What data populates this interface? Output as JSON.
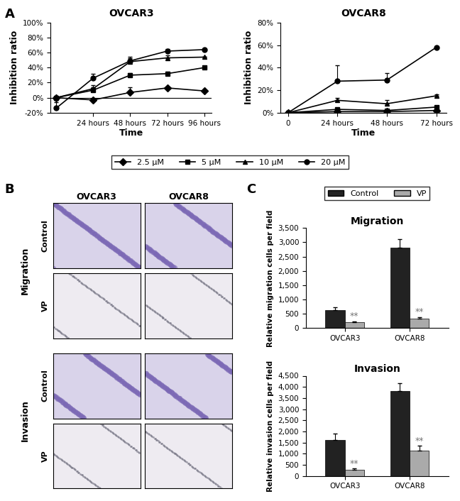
{
  "panel_labels": [
    "A",
    "B",
    "C"
  ],
  "chart_data": [
    {
      "type": "line",
      "title": "OVCAR3",
      "x_label": "Time",
      "y_label": "Inhibition ratio",
      "categories": [
        null,
        "24 hours",
        "48 hours",
        "72 hours",
        "96 hours"
      ],
      "ylim": [
        -20,
        100
      ],
      "yticks": [
        {
          "value": -20,
          "label": "-20%"
        },
        {
          "value": 0,
          "label": "0%"
        },
        {
          "value": 20,
          "label": "20%"
        },
        {
          "value": 40,
          "label": "40%"
        },
        {
          "value": 60,
          "label": "60%"
        },
        {
          "value": 80,
          "label": "80%"
        },
        {
          "value": 100,
          "label": "100%"
        }
      ],
      "legend": "lower center",
      "series": [
        {
          "name": "2.5 µM",
          "color": "#000000",
          "marker": "diamond",
          "values": [
            0,
            -3,
            7,
            13,
            9
          ],
          "errors": [
            0,
            2,
            7,
            2,
            1
          ]
        },
        {
          "name": "5 µM",
          "color": "#000000",
          "marker": "square",
          "values": [
            0,
            10,
            30,
            32,
            40
          ],
          "errors": [
            0,
            4,
            3,
            3,
            0
          ]
        },
        {
          "name": "10 µM",
          "color": "#000000",
          "marker": "triangle",
          "values": [
            0,
            12,
            48,
            53,
            54
          ],
          "errors": [
            0,
            5,
            6,
            3,
            0
          ]
        },
        {
          "name": "20 µM",
          "color": "#000000",
          "marker": "circle",
          "values": [
            -14,
            26,
            49,
            62,
            64
          ],
          "errors": [
            8,
            6,
            4,
            3,
            1
          ]
        }
      ]
    },
    {
      "type": "line",
      "title": "OVCAR8",
      "x_label": "Time",
      "y_label": "Inhibition ratio",
      "categories": [
        "0",
        "24 hours",
        "48 hours",
        "72 hours"
      ],
      "ylim": [
        0,
        80
      ],
      "yticks": [
        {
          "value": 0,
          "label": "0%"
        },
        {
          "value": 20,
          "label": "20%"
        },
        {
          "value": 40,
          "label": "40%"
        },
        {
          "value": 60,
          "label": "60%"
        },
        {
          "value": 80,
          "label": "80%"
        }
      ],
      "series": [
        {
          "name": "2.5 µM",
          "color": "#000000",
          "marker": "diamond",
          "values": [
            0,
            1,
            1,
            2
          ],
          "errors": [
            0,
            1,
            1,
            0
          ]
        },
        {
          "name": "5 µM",
          "color": "#000000",
          "marker": "square",
          "values": [
            0,
            3,
            2,
            5
          ],
          "errors": [
            0,
            1,
            1,
            0
          ]
        },
        {
          "name": "10 µM",
          "color": "#000000",
          "marker": "triangle",
          "values": [
            0,
            11,
            8,
            15
          ],
          "errors": [
            0,
            2,
            3,
            1
          ]
        },
        {
          "name": "20 µM",
          "color": "#000000",
          "marker": "circle",
          "values": [
            0,
            28,
            29,
            58
          ],
          "errors": [
            0,
            14,
            6,
            1
          ]
        }
      ]
    },
    {
      "type": "bar",
      "title": "Migration",
      "y_label": "Relative migration cells per field",
      "categories": [
        "OVCAR3",
        "OVCAR8"
      ],
      "ylim": [
        0,
        3500
      ],
      "yticks": [
        0,
        500,
        {
          "value": 1000,
          "label": "1,000"
        },
        {
          "value": 1500,
          "label": "1,500"
        },
        {
          "value": 2000,
          "label": "2,000"
        },
        {
          "value": 2500,
          "label": "2,500"
        },
        {
          "value": 3000,
          "label": "3,000"
        },
        {
          "value": 3500,
          "label": "3,500"
        }
      ],
      "legend": "upper center",
      "series": [
        {
          "name": "Control",
          "color": "#222222",
          "values": [
            620,
            2800
          ],
          "errors": [
            120,
            300
          ]
        },
        {
          "name": "VP",
          "color": "#aaaaaa",
          "values": [
            200,
            340
          ],
          "errors": [
            40,
            50
          ],
          "significance": [
            "**",
            "**"
          ]
        }
      ]
    },
    {
      "type": "bar",
      "title": "Invasion",
      "y_label": "Relative invasion cells per field",
      "categories": [
        "OVCAR3",
        "OVCAR8"
      ],
      "ylim": [
        0,
        4500
      ],
      "yticks": [
        0,
        500,
        {
          "value": 1000,
          "label": "1,000"
        },
        {
          "value": 1500,
          "label": "1,500"
        },
        {
          "value": 2000,
          "label": "2,000"
        },
        {
          "value": 2500,
          "label": "2,500"
        },
        {
          "value": 3000,
          "label": "3,000"
        },
        {
          "value": 3500,
          "label": "3,500"
        },
        {
          "value": 4000,
          "label": "4,000"
        },
        {
          "value": 4500,
          "label": "4,500"
        }
      ],
      "series": [
        {
          "name": "Control",
          "color": "#222222",
          "values": [
            1600,
            3800
          ],
          "errors": [
            300,
            380
          ]
        },
        {
          "name": "VP",
          "color": "#aaaaaa",
          "values": [
            280,
            1150
          ],
          "errors": [
            50,
            200
          ],
          "significance": [
            "**",
            "**"
          ]
        }
      ]
    }
  ],
  "image_grid": {
    "columns": [
      "OVCAR3",
      "OVCAR8"
    ],
    "groups": [
      {
        "name": "Migration",
        "rows": [
          "Control",
          "VP"
        ]
      },
      {
        "name": "Invasion",
        "rows": [
          "Control",
          "VP"
        ]
      }
    ]
  }
}
